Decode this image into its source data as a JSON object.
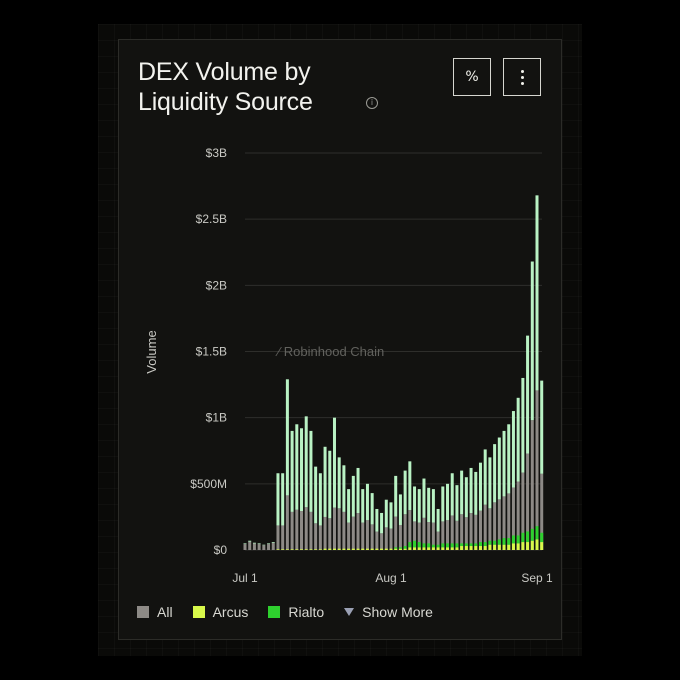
{
  "card": {
    "title": "DEX Volume by Liquidity Source",
    "watermark": "Robinhood Chain",
    "percent_button_label": "%"
  },
  "colors": {
    "all": "#8d8a86",
    "arcus": "#d8f84a",
    "rialto": "#2ed02e",
    "green_light": "#b9f2c4",
    "grid": "#2e2e2b",
    "axis_text": "#c9c9c4"
  },
  "icons": {
    "info": "info-icon",
    "more": "vertical-dots-icon",
    "show_more": "triangle-down-icon"
  },
  "chart_data": {
    "type": "bar",
    "ylabel": "Volume",
    "xlabel": "",
    "ylim": [
      0,
      3000000000
    ],
    "yticks": [
      0,
      500000000,
      1000000000,
      1500000000,
      2000000000,
      2500000000,
      3000000000
    ],
    "yticklabels": [
      "$0",
      "$500M",
      "$1B",
      "$1.5B",
      "$2B",
      "$2.5B",
      "$3B"
    ],
    "xtick_labels": [
      "Jul 1",
      "Aug 1",
      "Sep 1"
    ],
    "xtick_dates": [
      "2025-07-01",
      "2025-08-01",
      "2025-09-01"
    ],
    "grid": true,
    "legend_position": "bottom-left",
    "dates": [
      "2025-07-01",
      "2025-07-02",
      "2025-07-03",
      "2025-07-04",
      "2025-07-05",
      "2025-07-06",
      "2025-07-07",
      "2025-07-08",
      "2025-07-09",
      "2025-07-10",
      "2025-07-11",
      "2025-07-12",
      "2025-07-13",
      "2025-07-14",
      "2025-07-15",
      "2025-07-16",
      "2025-07-17",
      "2025-07-18",
      "2025-07-19",
      "2025-07-20",
      "2025-07-21",
      "2025-07-22",
      "2025-07-23",
      "2025-07-24",
      "2025-07-25",
      "2025-07-26",
      "2025-07-27",
      "2025-07-28",
      "2025-07-29",
      "2025-07-30",
      "2025-07-31",
      "2025-08-01",
      "2025-08-02",
      "2025-08-03",
      "2025-08-04",
      "2025-08-05",
      "2025-08-06",
      "2025-08-07",
      "2025-08-08",
      "2025-08-09",
      "2025-08-10",
      "2025-08-11",
      "2025-08-12",
      "2025-08-13",
      "2025-08-14",
      "2025-08-15",
      "2025-08-16",
      "2025-08-17",
      "2025-08-18",
      "2025-08-19",
      "2025-08-20",
      "2025-08-21",
      "2025-08-22",
      "2025-08-23",
      "2025-08-24",
      "2025-08-25",
      "2025-08-26",
      "2025-08-27",
      "2025-08-28",
      "2025-08-29",
      "2025-08-30",
      "2025-08-31",
      "2025-09-01",
      "2025-09-02"
    ],
    "series": [
      {
        "name": "All",
        "values": [
          50000000,
          70000000,
          55000000,
          50000000,
          40000000,
          50000000,
          60000000,
          580000000,
          580000000,
          1290000000,
          900000000,
          950000000,
          920000000,
          1010000000,
          900000000,
          630000000,
          580000000,
          780000000,
          750000000,
          1000000000,
          700000000,
          640000000,
          460000000,
          560000000,
          620000000,
          460000000,
          500000000,
          430000000,
          310000000,
          280000000,
          380000000,
          360000000,
          560000000,
          420000000,
          600000000,
          670000000,
          480000000,
          460000000,
          540000000,
          470000000,
          460000000,
          310000000,
          480000000,
          500000000,
          580000000,
          490000000,
          600000000,
          550000000,
          620000000,
          590000000,
          660000000,
          760000000,
          700000000,
          800000000,
          850000000,
          900000000,
          950000000,
          1050000000,
          1150000000,
          1300000000,
          1620000000,
          2180000000,
          2680000000,
          1280000000
        ]
      },
      {
        "name": "Arcus",
        "values": [
          0,
          0,
          0,
          0,
          0,
          0,
          0,
          5000000,
          5000000,
          5000000,
          5000000,
          5000000,
          5000000,
          5000000,
          5000000,
          5000000,
          5000000,
          10000000,
          10000000,
          10000000,
          10000000,
          10000000,
          10000000,
          10000000,
          10000000,
          10000000,
          10000000,
          10000000,
          10000000,
          10000000,
          10000000,
          10000000,
          10000000,
          10000000,
          10000000,
          20000000,
          20000000,
          20000000,
          20000000,
          20000000,
          20000000,
          20000000,
          20000000,
          20000000,
          20000000,
          20000000,
          30000000,
          30000000,
          30000000,
          30000000,
          30000000,
          30000000,
          40000000,
          40000000,
          40000000,
          40000000,
          40000000,
          50000000,
          50000000,
          60000000,
          60000000,
          70000000,
          80000000,
          60000000
        ]
      },
      {
        "name": "Rialto",
        "values": [
          0,
          0,
          0,
          0,
          0,
          0,
          0,
          0,
          0,
          0,
          0,
          0,
          0,
          0,
          0,
          0,
          0,
          0,
          0,
          0,
          0,
          0,
          0,
          0,
          0,
          0,
          0,
          0,
          0,
          0,
          0,
          0,
          10000000,
          10000000,
          20000000,
          40000000,
          50000000,
          40000000,
          30000000,
          30000000,
          20000000,
          20000000,
          30000000,
          30000000,
          30000000,
          30000000,
          20000000,
          20000000,
          20000000,
          20000000,
          30000000,
          30000000,
          30000000,
          30000000,
          40000000,
          50000000,
          50000000,
          60000000,
          60000000,
          70000000,
          80000000,
          90000000,
          100000000,
          70000000
        ]
      }
    ],
    "legend": [
      {
        "label": "All",
        "color": "#8d8a86"
      },
      {
        "label": "Arcus",
        "color": "#d8f84a"
      },
      {
        "label": "Rialto",
        "color": "#2ed02e"
      }
    ],
    "show_more_label": "Show More"
  }
}
